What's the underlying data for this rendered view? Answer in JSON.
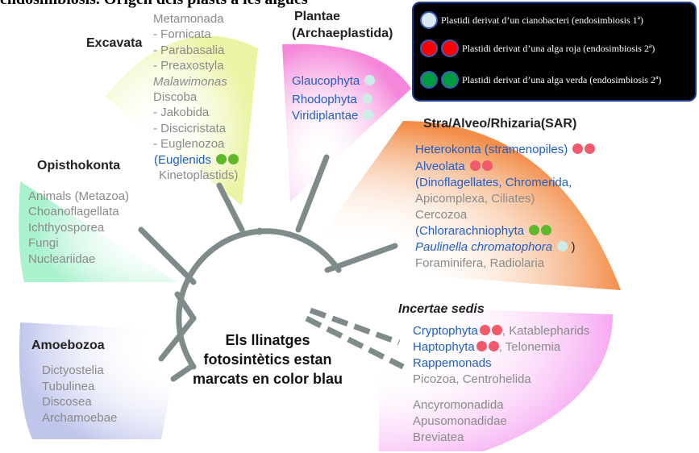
{
  "top_title": "endosimbiosis. Origen dels plasts a les algues",
  "legend": {
    "rows": [
      {
        "label": "Plastidi derivat d’un cianobacteri (endosimbiosis 1ª)"
      },
      {
        "label": "Plastidi derivat d’una alga roja (endosimbiosis 2ª)"
      },
      {
        "label": "Plastidi derivat d’una alga verda (endosimbiosis 2ª)"
      }
    ]
  },
  "groups": {
    "excavata": {
      "title": "Excavata",
      "items": [
        "Metamonada",
        "- Fornicata",
        "- Parabasalia",
        "- Preaxostyla",
        "Malawimonas",
        "Discoba",
        "- Jakobida",
        "- Discicristata",
        "- Euglenozoa",
        "(Euglenids",
        "Kinetoplastids)"
      ]
    },
    "plantae": {
      "title": "Plantae",
      "subtitle": "(Archaeplastida)",
      "items": [
        "Glaucophyta",
        "Rhodophyta",
        "Viridiplantae"
      ]
    },
    "sar": {
      "title": "Stra/Alveo/Rhizaria(SAR)",
      "items": [
        "Heterokonta (stramenopiles)",
        "Alveolata",
        "(Dinoflagellates, Chromerida,",
        "Apicomplexa, Ciliates)",
        "Cercozoa",
        "(Chlorarachniophyta",
        "Paulinella chromatophora",
        ")",
        "Foraminifera, Radiolaria"
      ]
    },
    "opisthokonta": {
      "title": "Opisthokonta",
      "items": [
        "Animals (Metazoa)",
        "Choanoflagellata",
        "Ichthyosporea",
        "Fungi",
        "Nucleariidae"
      ]
    },
    "amoebozoa": {
      "title": "Amoebozoa",
      "items": [
        "Dictyostelia",
        "Tubulinea",
        "Discosea",
        "Archamoebae"
      ]
    },
    "incertae": {
      "title": "Incertae sedis",
      "cryptophyta": "Cryptophyta",
      "cryptophyta_rest": ", Katablepharids",
      "haptophyta": "Haptophyta",
      "haptophyta_rest": ", Telonemia",
      "items": [
        "Rappemonads",
        "Picozoa, Centrohelida",
        "Ancyromonadida",
        "Apusomonadidae",
        "Breviatea"
      ]
    }
  },
  "center_note": "Els llinatges fotosintètics estan marcats en color blau",
  "colors": {
    "photosynthetic_text": "#1f5fc6",
    "red_dot": "#f05a6a",
    "green_dot": "#5fb82c",
    "primary_dot": "#cdece8",
    "branch": "#7f8a8a"
  }
}
